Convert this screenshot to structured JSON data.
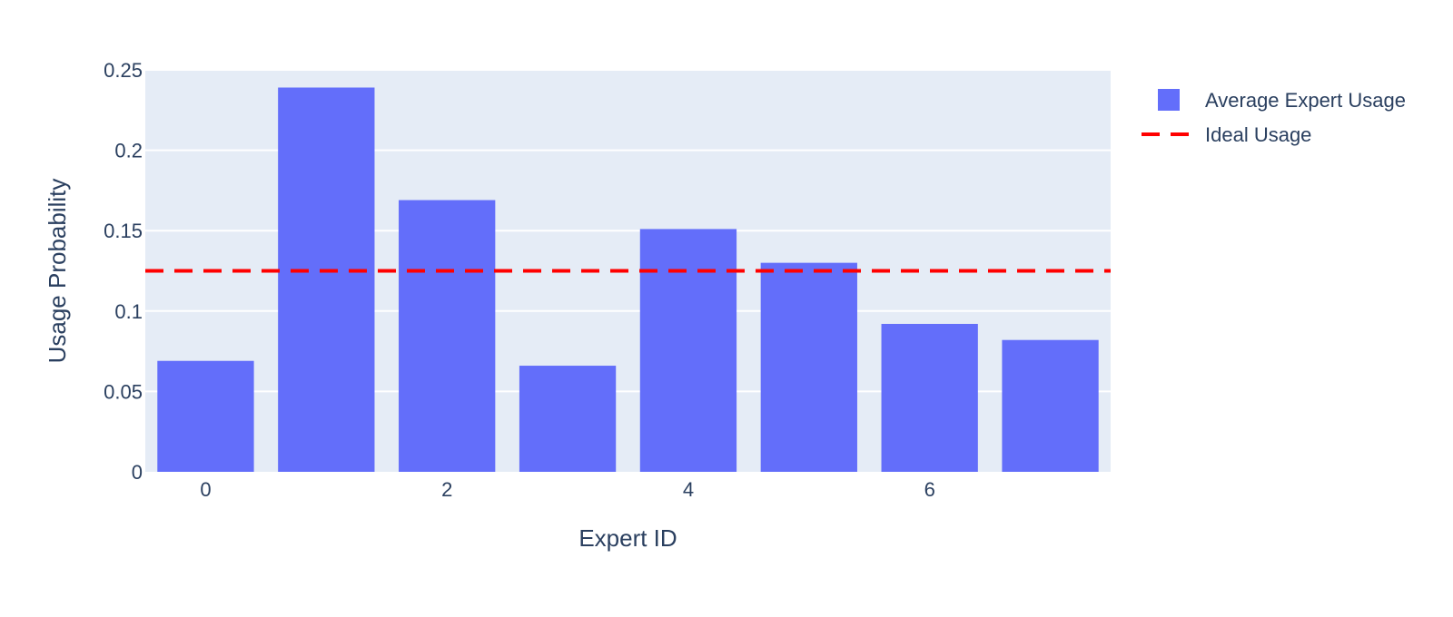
{
  "chart_data": {
    "type": "bar",
    "title": "",
    "xlabel": "Expert ID",
    "ylabel": "Usage Probability",
    "x": [
      0,
      1,
      2,
      3,
      4,
      5,
      6,
      7
    ],
    "series": [
      {
        "name": "Average Expert Usage",
        "type": "bar",
        "color": "#636efa",
        "values": [
          0.069,
          0.239,
          0.169,
          0.066,
          0.151,
          0.13,
          0.092,
          0.082
        ]
      },
      {
        "name": "Ideal Usage",
        "type": "line",
        "dash": "dashed",
        "color": "#ff0000",
        "values": [
          0.125,
          0.125,
          0.125,
          0.125,
          0.125,
          0.125,
          0.125,
          0.125
        ]
      }
    ],
    "xticks": [
      0,
      2,
      4,
      6
    ],
    "xtick_labels": [
      "0",
      "2",
      "4",
      "6"
    ],
    "yticks": [
      0,
      0.05,
      0.1,
      0.15,
      0.2,
      0.25
    ],
    "ytick_labels": [
      "0",
      "0.05",
      "0.1",
      "0.15",
      "0.2",
      "0.25"
    ],
    "ylim": [
      0,
      0.25
    ],
    "xlim": [
      -0.5,
      7.5
    ],
    "grid": true,
    "legend_position": "top-right",
    "plot_background": "#e5ecf6",
    "grid_color": "#ffffff"
  }
}
